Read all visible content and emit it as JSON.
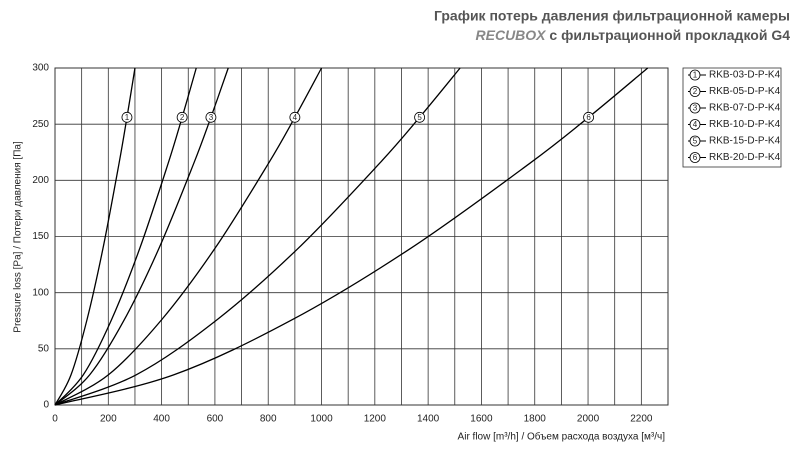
{
  "chart_data": {
    "type": "line",
    "title": "График потерь давления фильтрационной камеры",
    "subtitle_brand": "RECUBOX",
    "subtitle": "с фильтрационной прокладкой G4",
    "x_label": "Air flow [m³/h] / Объем расхода воздуха [м³/ч]",
    "y_label": "Pressure loss [Pa] / Потери давления [Па]",
    "xlim": [
      0,
      2300
    ],
    "ylim": [
      0,
      300
    ],
    "xticks": [
      0,
      200,
      400,
      600,
      800,
      1000,
      1200,
      1400,
      1600,
      1800,
      2000,
      2200
    ],
    "xminor": [
      100,
      300,
      500,
      700,
      900,
      1100,
      1300,
      1500,
      1700,
      1900,
      2100
    ],
    "yticks": [
      0,
      50,
      100,
      150,
      200,
      250,
      300
    ],
    "grid": true,
    "legend": "right",
    "series": [
      {
        "name": "RKB-03-D-P-K4",
        "label": "1",
        "color": "#000000",
        "x": [
          0,
          60,
          120,
          180,
          240,
          270,
          300
        ],
        "values": [
          0,
          26.8,
          75.9,
          139.4,
          214.7,
          256.1,
          300
        ]
      },
      {
        "name": "RKB-05-D-P-K4",
        "label": "2",
        "color": "#000000",
        "x": [
          0,
          106,
          212,
          318,
          424,
          477,
          530
        ],
        "values": [
          0,
          26.8,
          75.9,
          139.4,
          214.7,
          256.1,
          300
        ]
      },
      {
        "name": "RKB-07-D-P-K4",
        "label": "3",
        "color": "#000000",
        "x": [
          0,
          130,
          260,
          390,
          520,
          585,
          650
        ],
        "values": [
          0,
          26.8,
          75.9,
          139.4,
          214.7,
          256.1,
          300
        ]
      },
      {
        "name": "RKB-10-D-P-K4",
        "label": "4",
        "color": "#000000",
        "x": [
          0,
          200,
          400,
          600,
          800,
          900,
          1000
        ],
        "values": [
          0,
          26.8,
          75.9,
          139.4,
          214.7,
          256.1,
          300
        ]
      },
      {
        "name": "RKB-15-D-P-K4",
        "label": "5",
        "color": "#000000",
        "x": [
          0,
          304,
          608,
          912,
          1216,
          1368,
          1520
        ],
        "values": [
          0,
          26.8,
          75.9,
          139.4,
          214.7,
          256.1,
          300
        ]
      },
      {
        "name": "RKB-20-D-P-K4",
        "label": "6",
        "color": "#000000",
        "x": [
          0,
          445,
          890,
          1334,
          1779,
          2002,
          2224
        ],
        "values": [
          0,
          26.8,
          75.9,
          139.4,
          214.7,
          256.1,
          300
        ]
      }
    ]
  }
}
